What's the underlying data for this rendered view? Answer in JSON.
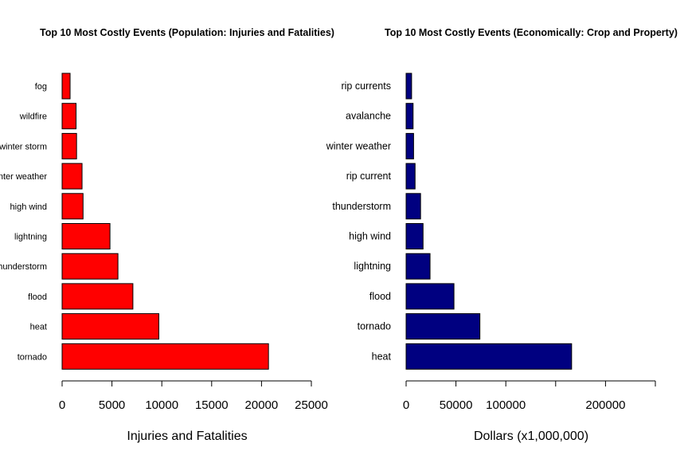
{
  "chart_data": [
    {
      "type": "bar",
      "orientation": "horizontal",
      "title": "Top 10 Most Costly Events (Population: Injuries and Fatalities)",
      "xlabel": "Injuries and Fatalities",
      "ylabel": "",
      "categories": [
        "tornado",
        "heat",
        "flood",
        "thunderstorm",
        "lightning",
        "high wind",
        "winter weather",
        "winter storm",
        "wildfire",
        "fog"
      ],
      "values": [
        20700,
        9700,
        7100,
        5600,
        4800,
        2100,
        2000,
        1450,
        1400,
        800
      ],
      "xlim": [
        0,
        25000
      ],
      "xticks": [
        0,
        5000,
        10000,
        15000,
        20000,
        25000
      ],
      "xtick_labels": [
        "0",
        "5000",
        "10000",
        "15000",
        "20000",
        "25000"
      ],
      "bar_color": "#ff0000",
      "grid": false,
      "legend": "none"
    },
    {
      "type": "bar",
      "orientation": "horizontal",
      "title": "Top 10 Most Costly Events (Economically: Crop and Property)",
      "xlabel": "Dollars (x1,000,000)",
      "ylabel": "",
      "categories": [
        "heat",
        "tornado",
        "flood",
        "lightning",
        "high wind",
        "thunderstorm",
        "rip current",
        "winter weather",
        "avalanche",
        "rip currents"
      ],
      "values": [
        166000,
        74000,
        48000,
        24000,
        17000,
        14500,
        9000,
        7500,
        7000,
        5500
      ],
      "xlim": [
        0,
        250000
      ],
      "xticks": [
        0,
        50000,
        100000,
        150000,
        200000,
        250000
      ],
      "xtick_labels": [
        "0",
        "50000",
        "100000",
        "",
        "200000",
        ""
      ],
      "bar_color": "#000080",
      "grid": false,
      "legend": "none"
    }
  ]
}
